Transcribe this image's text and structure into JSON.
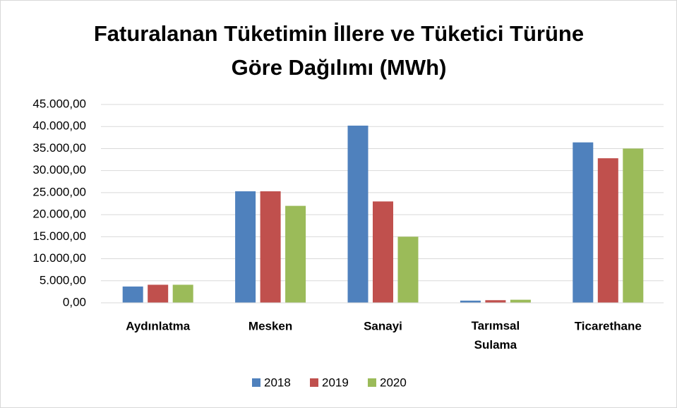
{
  "chart_data": {
    "type": "bar",
    "title": [
      "Faturalanan Tüketimin İllere ve Tüketici Türüne",
      "Göre Dağılımı (MWh)"
    ],
    "categories": [
      "Aydınlatma",
      "Mesken",
      "Sanayi",
      "Tarımsal Sulama",
      "Ticarethane"
    ],
    "series": [
      {
        "name": "2018",
        "color": "#4f81bd",
        "values": [
          3700,
          25300,
          40200,
          500,
          36400
        ]
      },
      {
        "name": "2019",
        "color": "#c0504d",
        "values": [
          4100,
          25300,
          23000,
          600,
          32800
        ]
      },
      {
        "name": "2020",
        "color": "#9bbb59",
        "values": [
          4100,
          22000,
          15000,
          700,
          35000
        ]
      }
    ],
    "ylim": [
      0,
      45000
    ],
    "yticks": [
      {
        "value": 0,
        "label": "0,00"
      },
      {
        "value": 5000,
        "label": "5.000,00"
      },
      {
        "value": 10000,
        "label": "10.000,00"
      },
      {
        "value": 15000,
        "label": "15.000,00"
      },
      {
        "value": 20000,
        "label": "20.000,00"
      },
      {
        "value": 25000,
        "label": "25.000,00"
      },
      {
        "value": 30000,
        "label": "30.000,00"
      },
      {
        "value": 35000,
        "label": "35.000,00"
      },
      {
        "value": 40000,
        "label": "40.000,00"
      },
      {
        "value": 45000,
        "label": "45.000,00"
      }
    ],
    "grid": true,
    "legend": "bottom"
  }
}
